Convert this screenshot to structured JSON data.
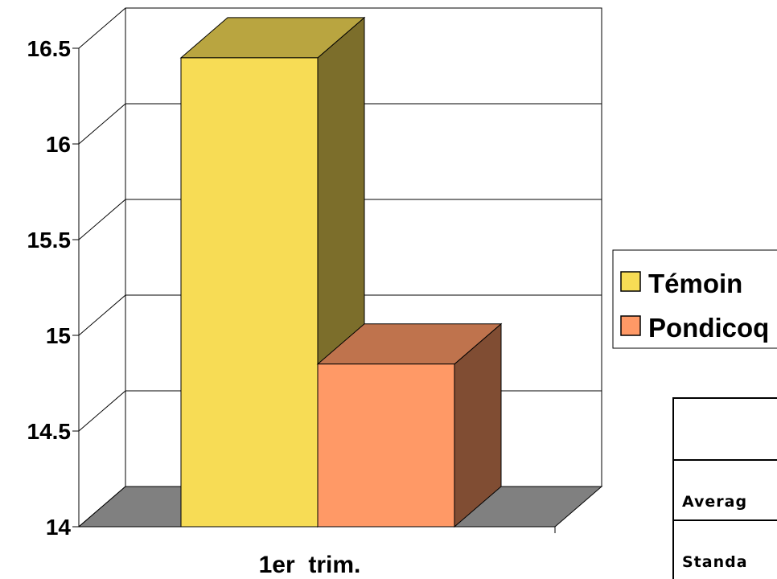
{
  "chart_data": {
    "type": "bar",
    "style": "3d-clustered-column",
    "categories": [
      "1er  trim."
    ],
    "series": [
      {
        "name": "Témoin",
        "values": [
          16.45
        ],
        "color": "#F7DC55"
      },
      {
        "name": "Pondicoq",
        "values": [
          14.85
        ],
        "color": "#FF9966"
      }
    ],
    "title": "",
    "xlabel": "",
    "ylabel": "",
    "ylim": [
      14,
      16.5
    ],
    "yticks": [
      "14",
      "14.5",
      "15",
      "15.5",
      "16",
      "16.5"
    ],
    "grid": true,
    "legend_position": "right",
    "floor_color": "#808080"
  },
  "table": {
    "rows": [
      "Averag",
      "Standa"
    ]
  }
}
